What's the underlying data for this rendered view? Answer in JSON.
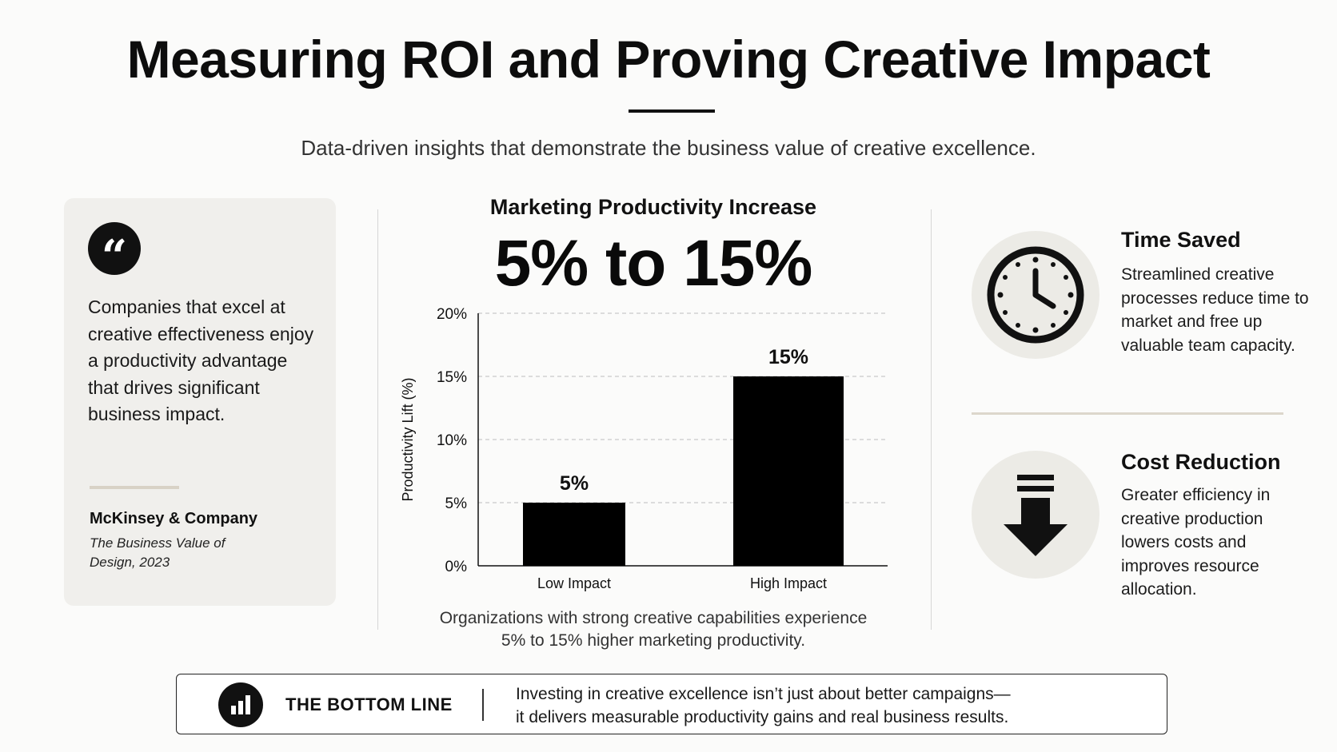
{
  "header": {
    "title": "Measuring ROI and Proving Creative Impact",
    "subtitle": "Data-driven insights that demonstrate the business value of creative excellence."
  },
  "quote": {
    "icon": "quote-icon",
    "text": "Companies that excel at creative effectiveness enjoy a productivity advantage that drives significant business impact.",
    "source": "McKinsey & Company",
    "publication": "The Business Value of Design, 2023"
  },
  "center": {
    "heading": "Marketing Productivity Increase",
    "big_stat": "5% to 15%",
    "caption_line1": "Organizations with strong creative capabilities experience",
    "caption_line2": "5% to 15% higher marketing productivity."
  },
  "chart_data": {
    "type": "bar",
    "categories": [
      "Low Impact",
      "High Impact"
    ],
    "values": [
      5,
      15
    ],
    "data_labels": [
      "5%",
      "15%"
    ],
    "title": "",
    "xlabel": "",
    "ylabel": "Productivity Lift (%)",
    "ylim": [
      0,
      20
    ],
    "yticks": [
      0,
      5,
      10,
      15,
      20
    ],
    "ytick_labels": [
      "0%",
      "5%",
      "10%",
      "15%",
      "20%"
    ],
    "grid": true,
    "bar_color": "#000000"
  },
  "stats": [
    {
      "icon": "clock-icon",
      "title": "Time Saved",
      "description": "Streamlined creative processes reduce time to market and free up valuable team capacity."
    },
    {
      "icon": "down-arrow-icon",
      "title": "Cost Reduction",
      "description": "Greater efficiency in creative production lowers costs and improves resource allocation."
    }
  ],
  "banner": {
    "icon": "bar-chart-icon",
    "label": "THE BOTTOM LINE",
    "text_line1": "Investing in creative excellence isn’t just about better campaigns—",
    "text_line2": "it delivers measurable productivity gains and real business results."
  },
  "colors": {
    "background": "#fbfbfa",
    "card": "#f0efec",
    "accent_rule": "#d8d2c6",
    "icon_circle": "#ecebe6",
    "ink": "#111111"
  }
}
